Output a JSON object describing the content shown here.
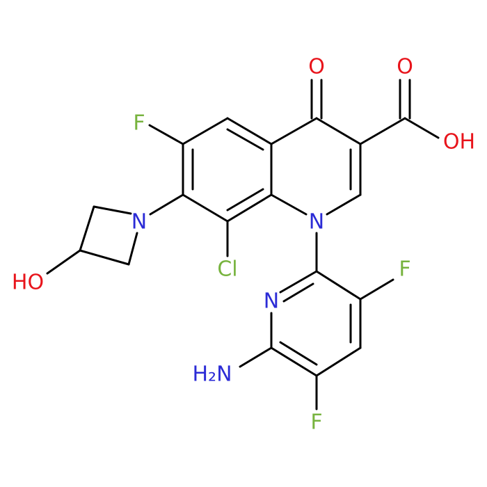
{
  "atoms": [
    {
      "label": "O"
    },
    {
      "label": "O"
    },
    {
      "label": "OH"
    },
    {
      "label": "F"
    },
    {
      "label": "N"
    },
    {
      "label": "N"
    },
    {
      "label": "Cl"
    },
    {
      "label": "HO"
    },
    {
      "label": "N"
    },
    {
      "label": "F"
    },
    {
      "label": "H₂N"
    },
    {
      "label": "F"
    }
  ]
}
